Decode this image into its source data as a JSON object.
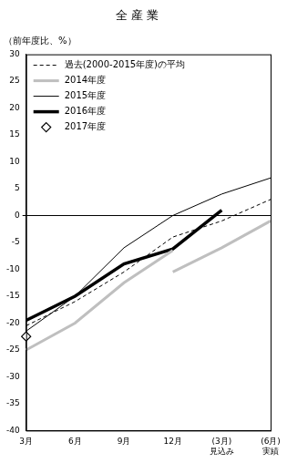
{
  "chart_data": {
    "type": "line",
    "title": "全 産 業",
    "y_label": "（前年度比、%）",
    "categories": [
      "3月",
      "6月",
      "9月",
      "12月",
      "(3月)\n見込み",
      "(6月)\n実績"
    ],
    "ylim": [
      -40,
      30
    ],
    "yticks": [
      -40,
      -35,
      -30,
      -25,
      -20,
      -15,
      -10,
      -5,
      0,
      5,
      10,
      15,
      20,
      25,
      30
    ],
    "grid": false,
    "legend": "upper left",
    "series": [
      {
        "name": "過去(2000-2015年度)の平均",
        "color": "#000000",
        "line_style": "dashed",
        "marker": "none",
        "values": [
          -20.5,
          -16,
          -10.5,
          -4,
          -1,
          3
        ]
      },
      {
        "name": "2014年度",
        "color": "#bfbfbf",
        "line_style": "solid",
        "marker": "none",
        "values": [
          -25,
          -20,
          -12.5,
          -6.5,
          null,
          null
        ]
      },
      {
        "name": "2014年度",
        "color": "#bfbfbf",
        "line_style": "solid",
        "marker": "none",
        "values": [
          null,
          null,
          null,
          -10.5,
          -6,
          -1
        ]
      },
      {
        "name": "2015年度",
        "color": "#000000",
        "line_style": "solid",
        "marker": "none",
        "values": [
          -21.5,
          -15,
          -6,
          0,
          4,
          7
        ]
      },
      {
        "name": "2016年度",
        "color": "#000000",
        "line_style": "solid",
        "marker": "none",
        "values": [
          -19.5,
          -15,
          -9,
          -6.2,
          1,
          null
        ]
      },
      {
        "name": "2017年度",
        "color": "#000000",
        "line_style": "none",
        "marker": "diamond",
        "values": [
          -22.5,
          null,
          null,
          null,
          null,
          null
        ]
      }
    ]
  }
}
